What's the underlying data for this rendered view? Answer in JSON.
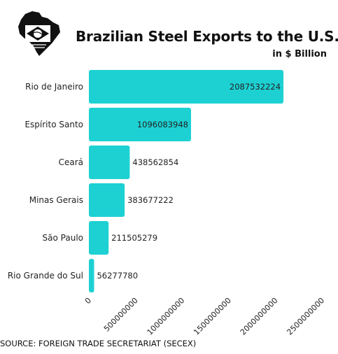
{
  "header": {
    "title": "Brazilian Steel Exports to the U.S.",
    "subtitle": "in $ Billion",
    "logo_icon": "brazil-map-flag-icon"
  },
  "footer": {
    "source": "SOURCE: FOREIGN TRADE SECRETARIAT (SECEX)"
  },
  "colors": {
    "bar": "#1dd1d3",
    "logo_dark": "#111111",
    "text": "#222222"
  },
  "chart_data": {
    "type": "bar",
    "orientation": "horizontal",
    "title": "Brazilian Steel Exports to the U.S.",
    "subtitle": "in $ Billion",
    "categories": [
      "Rio de Janeiro",
      "Espírito Santo",
      "Ceará",
      "Minas Gerais",
      "São Paulo",
      "Rio Grande do Sul"
    ],
    "values": [
      2087532224,
      1096083948,
      438562854,
      383677222,
      211505279,
      56277780
    ],
    "data_labels": [
      "2087532224",
      "1096083948",
      "438562854",
      "383677222",
      "211505279",
      "56277780"
    ],
    "xlim": [
      0,
      2500000000
    ],
    "xticks": [
      "0",
      "500000000",
      "1000000000",
      "1500000000",
      "2000000000",
      "2500000000"
    ],
    "grid": false,
    "legend": "none"
  }
}
